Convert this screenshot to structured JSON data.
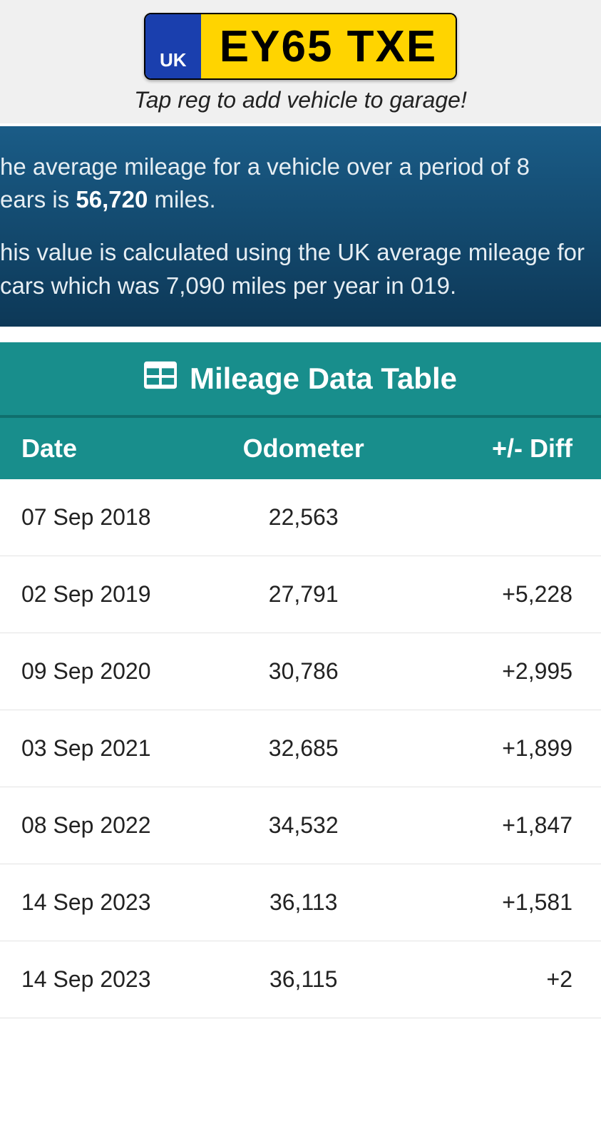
{
  "plate": {
    "country": "UK",
    "registration": "EY65 TXE",
    "blue_bg": "#1a3fae",
    "yellow_bg": "#ffd400"
  },
  "hint": "Tap reg to add vehicle to garage!",
  "info": {
    "line1_prefix": "he average mileage for a vehicle over a period of 8",
    "line1_suffix_prefix": "ears is ",
    "avg_miles": "56,720",
    "line1_suffix_tail": " miles.",
    "line2": "his value is calculated using the UK average mileage for cars which was 7,090 miles per year in 019.",
    "bg_gradient_top": "#1a5c87",
    "bg_gradient_bottom": "#0d3857"
  },
  "table": {
    "title": "Mileage Data Table",
    "header_bg": "#188e8c",
    "columns": [
      "Date",
      "Odometer",
      "+/- Diff"
    ],
    "rows": [
      {
        "date": "07 Sep 2018",
        "odometer": "22,563",
        "diff": ""
      },
      {
        "date": "02 Sep 2019",
        "odometer": "27,791",
        "diff": "+5,228"
      },
      {
        "date": "09 Sep 2020",
        "odometer": "30,786",
        "diff": "+2,995"
      },
      {
        "date": "03 Sep 2021",
        "odometer": "32,685",
        "diff": "+1,899"
      },
      {
        "date": "08 Sep 2022",
        "odometer": "34,532",
        "diff": "+1,847"
      },
      {
        "date": "14 Sep 2023",
        "odometer": "36,113",
        "diff": "+1,581"
      },
      {
        "date": "14 Sep 2023",
        "odometer": "36,115",
        "diff": "+2"
      }
    ]
  }
}
